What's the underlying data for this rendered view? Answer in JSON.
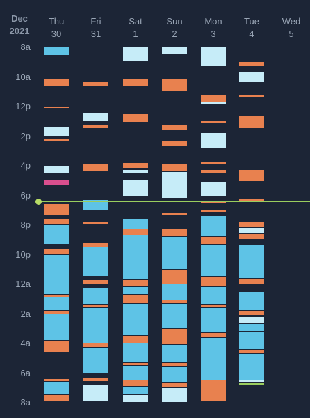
{
  "header": {
    "month": "Dec",
    "year": "2021"
  },
  "days": [
    {
      "dow": "Thu",
      "num": "30"
    },
    {
      "dow": "Fri",
      "num": "31"
    },
    {
      "dow": "Sat",
      "num": "1"
    },
    {
      "dow": "Sun",
      "num": "2"
    },
    {
      "dow": "Mon",
      "num": "3"
    },
    {
      "dow": "Tue",
      "num": "4"
    },
    {
      "dow": "Wed",
      "num": "5"
    }
  ],
  "time_labels": [
    "8a",
    "10a",
    "12p",
    "2p",
    "4p",
    "6p",
    "8p",
    "10p",
    "12a",
    "2a",
    "4a",
    "6a",
    "8a"
  ],
  "colors": {
    "sleep": "#5ec3e6",
    "light": "#c6ecf8",
    "active": "#e8814f",
    "pink": "#d94f8e",
    "now": "#9acd5e",
    "background": "#1c2536",
    "column": "#141d2b"
  },
  "now_hour": 10.4,
  "events": [
    [
      {
        "s": 0.0,
        "e": 0.55,
        "c": "sleep"
      },
      {
        "s": 2.1,
        "e": 2.7,
        "c": "active"
      },
      {
        "s": 4.0,
        "e": 4.1,
        "c": "active"
      },
      {
        "s": 5.4,
        "e": 6.0,
        "c": "light"
      },
      {
        "s": 6.2,
        "e": 6.4,
        "c": "active"
      },
      {
        "s": 8.0,
        "e": 8.5,
        "c": "light"
      },
      {
        "s": 9.0,
        "e": 9.3,
        "c": "pink"
      },
      {
        "s": 10.6,
        "e": 11.4,
        "c": "active"
      },
      {
        "s": 11.6,
        "e": 12.0,
        "c": "active"
      },
      {
        "s": 12.0,
        "e": 13.3,
        "c": "sleep"
      },
      {
        "s": 13.6,
        "e": 14.0,
        "c": "active"
      },
      {
        "s": 14.0,
        "e": 16.7,
        "c": "sleep"
      },
      {
        "s": 16.7,
        "e": 16.9,
        "c": "active"
      },
      {
        "s": 16.9,
        "e": 17.8,
        "c": "sleep"
      },
      {
        "s": 17.8,
        "e": 18.0,
        "c": "active"
      },
      {
        "s": 18.0,
        "e": 19.8,
        "c": "sleep"
      },
      {
        "s": 19.8,
        "e": 20.6,
        "c": "active"
      },
      {
        "s": 22.4,
        "e": 22.6,
        "c": "active"
      },
      {
        "s": 22.6,
        "e": 23.5,
        "c": "sleep"
      },
      {
        "s": 23.5,
        "e": 23.9,
        "c": "active"
      }
    ],
    [
      {
        "s": 2.3,
        "e": 2.7,
        "c": "active"
      },
      {
        "s": 4.4,
        "e": 5.0,
        "c": "light"
      },
      {
        "s": 5.2,
        "e": 5.5,
        "c": "active"
      },
      {
        "s": 7.9,
        "e": 8.4,
        "c": "active"
      },
      {
        "s": 10.3,
        "e": 11.0,
        "c": "sleep"
      },
      {
        "s": 11.8,
        "e": 12.0,
        "c": "active"
      },
      {
        "s": 13.2,
        "e": 13.5,
        "c": "active"
      },
      {
        "s": 13.5,
        "e": 15.5,
        "c": "sleep"
      },
      {
        "s": 15.7,
        "e": 16.0,
        "c": "active"
      },
      {
        "s": 16.3,
        "e": 17.4,
        "c": "sleep"
      },
      {
        "s": 17.4,
        "e": 17.6,
        "c": "active"
      },
      {
        "s": 17.6,
        "e": 20.0,
        "c": "sleep"
      },
      {
        "s": 20.0,
        "e": 20.3,
        "c": "active"
      },
      {
        "s": 20.3,
        "e": 22.0,
        "c": "sleep"
      },
      {
        "s": 22.3,
        "e": 22.6,
        "c": "active"
      },
      {
        "s": 22.8,
        "e": 23.9,
        "c": "light"
      }
    ],
    [
      {
        "s": 0.0,
        "e": 1.0,
        "c": "light"
      },
      {
        "s": 2.1,
        "e": 2.7,
        "c": "active"
      },
      {
        "s": 4.5,
        "e": 5.1,
        "c": "active"
      },
      {
        "s": 7.8,
        "e": 8.2,
        "c": "active"
      },
      {
        "s": 8.3,
        "e": 8.5,
        "c": "light"
      },
      {
        "s": 9.0,
        "e": 10.1,
        "c": "light"
      },
      {
        "s": 11.6,
        "e": 12.3,
        "c": "sleep"
      },
      {
        "s": 12.3,
        "e": 12.7,
        "c": "active"
      },
      {
        "s": 12.7,
        "e": 15.7,
        "c": "sleep"
      },
      {
        "s": 15.7,
        "e": 16.2,
        "c": "active"
      },
      {
        "s": 16.2,
        "e": 16.7,
        "c": "sleep"
      },
      {
        "s": 16.7,
        "e": 17.3,
        "c": "active"
      },
      {
        "s": 17.3,
        "e": 19.5,
        "c": "sleep"
      },
      {
        "s": 19.5,
        "e": 20.0,
        "c": "active"
      },
      {
        "s": 20.0,
        "e": 21.3,
        "c": "sleep"
      },
      {
        "s": 21.3,
        "e": 21.5,
        "c": "active"
      },
      {
        "s": 21.5,
        "e": 22.5,
        "c": "sleep"
      },
      {
        "s": 22.5,
        "e": 22.9,
        "c": "active"
      },
      {
        "s": 22.9,
        "e": 23.5,
        "c": "sleep"
      },
      {
        "s": 23.5,
        "e": 24.0,
        "c": "light"
      }
    ],
    [
      {
        "s": 0.0,
        "e": 0.5,
        "c": "light"
      },
      {
        "s": 2.1,
        "e": 3.0,
        "c": "active"
      },
      {
        "s": 5.2,
        "e": 5.6,
        "c": "active"
      },
      {
        "s": 6.3,
        "e": 6.7,
        "c": "active"
      },
      {
        "s": 7.9,
        "e": 8.4,
        "c": "active"
      },
      {
        "s": 8.4,
        "e": 10.2,
        "c": "light"
      },
      {
        "s": 11.2,
        "e": 11.3,
        "c": "active"
      },
      {
        "s": 12.3,
        "e": 12.8,
        "c": "active"
      },
      {
        "s": 12.8,
        "e": 15.0,
        "c": "sleep"
      },
      {
        "s": 15.0,
        "e": 16.0,
        "c": "active"
      },
      {
        "s": 16.0,
        "e": 17.1,
        "c": "sleep"
      },
      {
        "s": 17.1,
        "e": 17.3,
        "c": "active"
      },
      {
        "s": 17.3,
        "e": 19.0,
        "c": "sleep"
      },
      {
        "s": 19.0,
        "e": 20.1,
        "c": "active"
      },
      {
        "s": 20.1,
        "e": 21.3,
        "c": "sleep"
      },
      {
        "s": 21.3,
        "e": 21.6,
        "c": "active"
      },
      {
        "s": 21.6,
        "e": 22.7,
        "c": "sleep"
      },
      {
        "s": 22.7,
        "e": 23.0,
        "c": "active"
      },
      {
        "s": 23.0,
        "e": 24.0,
        "c": "light"
      }
    ],
    [
      {
        "s": 0.0,
        "e": 1.3,
        "c": "light"
      },
      {
        "s": 3.2,
        "e": 3.7,
        "c": "active"
      },
      {
        "s": 3.7,
        "e": 3.9,
        "c": "light"
      },
      {
        "s": 5.0,
        "e": 5.1,
        "c": "active"
      },
      {
        "s": 5.8,
        "e": 6.8,
        "c": "light"
      },
      {
        "s": 7.7,
        "e": 7.9,
        "c": "active"
      },
      {
        "s": 8.3,
        "e": 8.5,
        "c": "active"
      },
      {
        "s": 9.1,
        "e": 10.1,
        "c": "light"
      },
      {
        "s": 10.4,
        "e": 10.6,
        "c": "active"
      },
      {
        "s": 11.0,
        "e": 11.2,
        "c": "active"
      },
      {
        "s": 11.4,
        "e": 12.8,
        "c": "sleep"
      },
      {
        "s": 12.8,
        "e": 13.3,
        "c": "active"
      },
      {
        "s": 13.3,
        "e": 15.5,
        "c": "sleep"
      },
      {
        "s": 15.5,
        "e": 16.2,
        "c": "active"
      },
      {
        "s": 16.2,
        "e": 17.4,
        "c": "sleep"
      },
      {
        "s": 17.4,
        "e": 17.6,
        "c": "active"
      },
      {
        "s": 17.6,
        "e": 19.3,
        "c": "sleep"
      },
      {
        "s": 19.3,
        "e": 19.6,
        "c": "active"
      },
      {
        "s": 19.6,
        "e": 22.5,
        "c": "sleep"
      },
      {
        "s": 22.5,
        "e": 23.9,
        "c": "active"
      }
    ],
    [
      {
        "s": 1.0,
        "e": 1.3,
        "c": "active"
      },
      {
        "s": 1.7,
        "e": 2.4,
        "c": "light"
      },
      {
        "s": 3.2,
        "e": 3.4,
        "c": "active"
      },
      {
        "s": 4.6,
        "e": 5.5,
        "c": "active"
      },
      {
        "s": 8.3,
        "e": 9.1,
        "c": "active"
      },
      {
        "s": 10.2,
        "e": 10.4,
        "c": "active"
      },
      {
        "s": 11.8,
        "e": 12.2,
        "c": "active"
      },
      {
        "s": 12.2,
        "e": 12.6,
        "c": "light"
      },
      {
        "s": 12.6,
        "e": 13.0,
        "c": "active"
      },
      {
        "s": 13.3,
        "e": 15.6,
        "c": "sleep"
      },
      {
        "s": 15.6,
        "e": 16.0,
        "c": "active"
      },
      {
        "s": 16.5,
        "e": 17.8,
        "c": "sleep"
      },
      {
        "s": 17.8,
        "e": 18.1,
        "c": "active"
      },
      {
        "s": 18.2,
        "e": 18.7,
        "c": "light"
      },
      {
        "s": 18.7,
        "e": 19.2,
        "c": "sleep"
      },
      {
        "s": 19.2,
        "e": 20.4,
        "c": "sleep"
      },
      {
        "s": 20.4,
        "e": 20.7,
        "c": "active"
      },
      {
        "s": 20.7,
        "e": 22.5,
        "c": "sleep"
      },
      {
        "s": 22.5,
        "e": 22.7,
        "c": "light"
      }
    ],
    []
  ]
}
